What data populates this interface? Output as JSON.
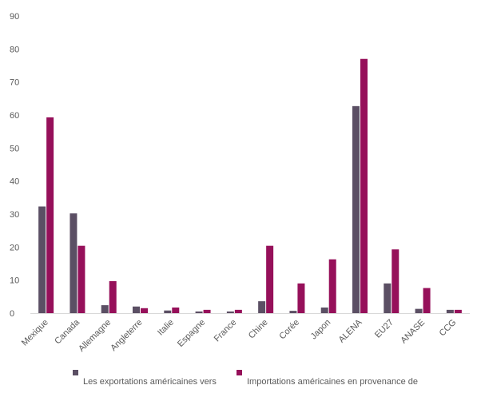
{
  "chart_data": {
    "type": "bar",
    "title": "",
    "xlabel": "",
    "ylabel": "",
    "ylim": [
      0,
      90
    ],
    "yticks": [
      0,
      10,
      20,
      30,
      40,
      50,
      60,
      70,
      80,
      90
    ],
    "grid": false,
    "legend_position": "bottom",
    "categories": [
      "Mexique",
      "Canada",
      "Allemagne",
      "Angleterre",
      "Italie",
      "Espagne",
      "France",
      "Chine",
      "Corée",
      "Japon",
      "ALENA",
      "EU27",
      "ANASE",
      "CCG"
    ],
    "series": [
      {
        "name": "Les exportations américaines vers",
        "color": "#5b4f64",
        "values": [
          32.3,
          30.2,
          2.4,
          2.0,
          0.8,
          0.5,
          0.5,
          3.6,
          0.7,
          1.7,
          62.7,
          9.0,
          1.3,
          1.0
        ]
      },
      {
        "name": "Importations américaines en provenance de",
        "color": "#96105a",
        "values": [
          59.3,
          20.4,
          9.7,
          1.5,
          1.7,
          1.0,
          1.0,
          20.4,
          9.0,
          16.3,
          77.0,
          19.3,
          7.6,
          1.0
        ]
      }
    ]
  }
}
